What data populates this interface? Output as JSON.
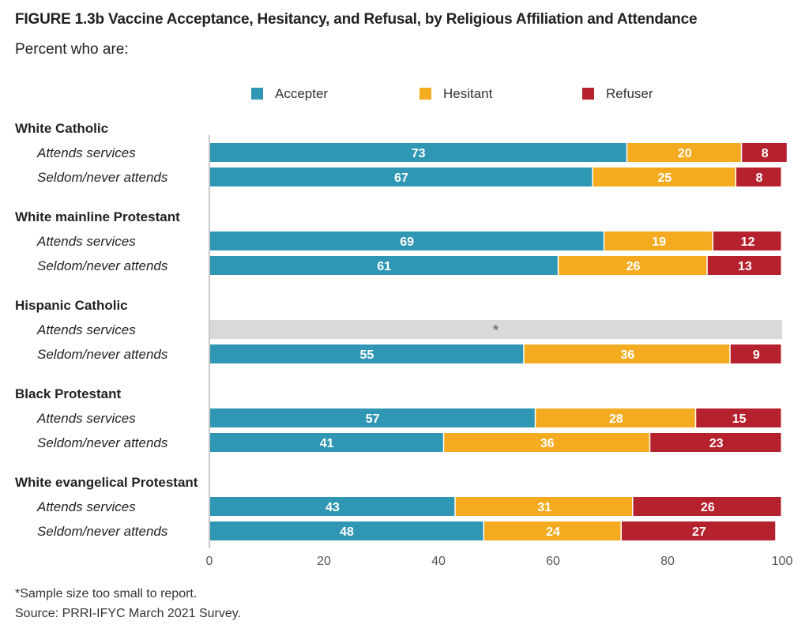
{
  "figure": {
    "title": "FIGURE 1.3b  Vaccine Acceptance, Hesitancy, and Refusal, by Religious Affiliation and Attendance",
    "subtitle": "Percent who are:",
    "footnote": "*Sample size too small to report.",
    "source": "Source: PRRI-IFYC March 2021 Survey."
  },
  "chart_data": {
    "type": "bar",
    "orientation": "horizontal",
    "stacked": true,
    "title": "FIGURE 1.3b  Vaccine Acceptance, Hesitancy, and Refusal, by Religious Affiliation and Attendance",
    "subtitle": "Percent who are:",
    "xlabel": "",
    "ylabel": "",
    "xlim": [
      0,
      100
    ],
    "xticks": [
      0,
      20,
      40,
      60,
      80,
      100
    ],
    "grid": false,
    "legend_position": "top",
    "series": [
      {
        "name": "Accepter",
        "color": "#2f97b3"
      },
      {
        "name": "Hesitant",
        "color": "#f5ab1f"
      },
      {
        "name": "Refuser",
        "color": "#b6212e"
      }
    ],
    "groups": [
      {
        "name": "White Catholic",
        "rows": [
          {
            "label": "Attends services",
            "values": [
              73,
              20,
              8
            ]
          },
          {
            "label": "Seldom/never attends",
            "values": [
              67,
              25,
              8
            ]
          }
        ]
      },
      {
        "name": "White mainline Protestant",
        "rows": [
          {
            "label": "Attends services",
            "values": [
              69,
              19,
              12
            ]
          },
          {
            "label": "Seldom/never attends",
            "values": [
              61,
              26,
              13
            ]
          }
        ]
      },
      {
        "name": "Hispanic Catholic",
        "rows": [
          {
            "label": "Attends services",
            "values": null,
            "note": "*"
          },
          {
            "label": "Seldom/never attends",
            "values": [
              55,
              36,
              9
            ]
          }
        ]
      },
      {
        "name": "Black Protestant",
        "rows": [
          {
            "label": "Attends services",
            "values": [
              57,
              28,
              15
            ]
          },
          {
            "label": "Seldom/never attends",
            "values": [
              41,
              36,
              23
            ]
          }
        ]
      },
      {
        "name": "White evangelical Protestant",
        "rows": [
          {
            "label": "Attends services",
            "values": [
              43,
              31,
              26
            ]
          },
          {
            "label": "Seldom/never attends",
            "values": [
              48,
              24,
              27
            ]
          }
        ]
      }
    ],
    "placeholder_color": "#d9d9d9",
    "axis_color": "#c8c8c8"
  }
}
